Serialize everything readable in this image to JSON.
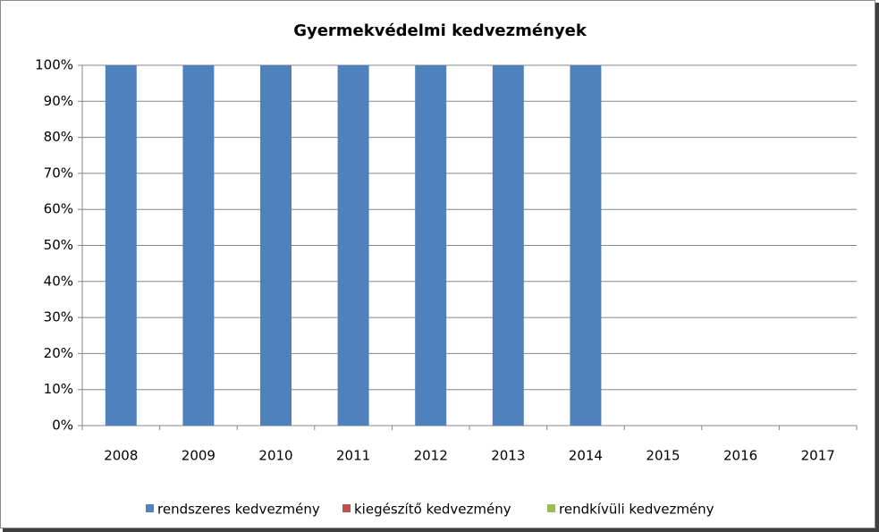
{
  "chart_data": {
    "type": "stacked_bar",
    "title": "Gyermekvédelmi kedvezmények",
    "categories": [
      "2008",
      "2009",
      "2010",
      "2011",
      "2012",
      "2013",
      "2014",
      "2015",
      "2016",
      "2017"
    ],
    "series": [
      {
        "name": "rendszeres kedvezmény",
        "color": "#4f81bd",
        "values": [
          100,
          100,
          100,
          100,
          100,
          100,
          100,
          null,
          null,
          null
        ]
      },
      {
        "name": "kiegészítő kedvezmény",
        "color": "#c0504d",
        "values": [
          0,
          0,
          0,
          0,
          0,
          0,
          0,
          null,
          null,
          null
        ]
      },
      {
        "name": "rendkívüli kedvezmény",
        "color": "#9bbb59",
        "values": [
          0,
          0,
          0,
          0,
          0,
          0,
          0,
          null,
          null,
          null
        ]
      }
    ],
    "ylim": [
      0,
      100
    ],
    "yticks": [
      {
        "value": 0,
        "label": "0%"
      },
      {
        "value": 10,
        "label": "10%"
      },
      {
        "value": 20,
        "label": "20%"
      },
      {
        "value": 30,
        "label": "30%"
      },
      {
        "value": 40,
        "label": "40%"
      },
      {
        "value": 50,
        "label": "50%"
      },
      {
        "value": 60,
        "label": "60%"
      },
      {
        "value": 70,
        "label": "70%"
      },
      {
        "value": 80,
        "label": "80%"
      },
      {
        "value": 90,
        "label": "90%"
      },
      {
        "value": 100,
        "label": "100%"
      }
    ],
    "grid": true,
    "legend": "bottom"
  }
}
